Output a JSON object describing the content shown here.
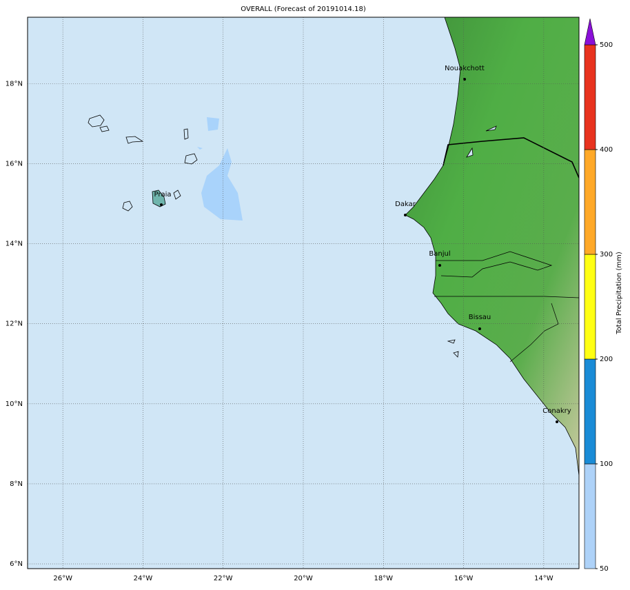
{
  "chart_data": {
    "type": "map",
    "title": "OVERALL (Forecast of 20191014.18)",
    "lonlim": [
      -26.88,
      -13.12
    ],
    "latlim": [
      5.88,
      19.66
    ],
    "lonticks": [
      {
        "value": -26,
        "label": "26°W"
      },
      {
        "value": -24,
        "label": "24°W"
      },
      {
        "value": -22,
        "label": "22°W"
      },
      {
        "value": -20,
        "label": "20°W"
      },
      {
        "value": -18,
        "label": "18°W"
      },
      {
        "value": -16,
        "label": "16°W"
      },
      {
        "value": -14,
        "label": "14°W"
      }
    ],
    "latticks": [
      {
        "value": 6,
        "label": "6°N"
      },
      {
        "value": 8,
        "label": "8°N"
      },
      {
        "value": 10,
        "label": "10°N"
      },
      {
        "value": 12,
        "label": "12°N"
      },
      {
        "value": 14,
        "label": "14°N"
      },
      {
        "value": 16,
        "label": "16°N"
      },
      {
        "value": 18,
        "label": "18°N"
      }
    ],
    "grid": true,
    "cities": [
      "Nouakchott",
      "Praia",
      "Dakar",
      "Banjul",
      "Bissau",
      "Conakry"
    ],
    "colorbar": {
      "label": "Total Precipitation (mm)",
      "levels": [
        50,
        100,
        200,
        300,
        400,
        500
      ],
      "colors": [
        "#aed2f8",
        "#1a8bd6",
        "#ffff14",
        "#ffa928",
        "#e8331f"
      ],
      "extend_color": "#8a10d8"
    }
  }
}
